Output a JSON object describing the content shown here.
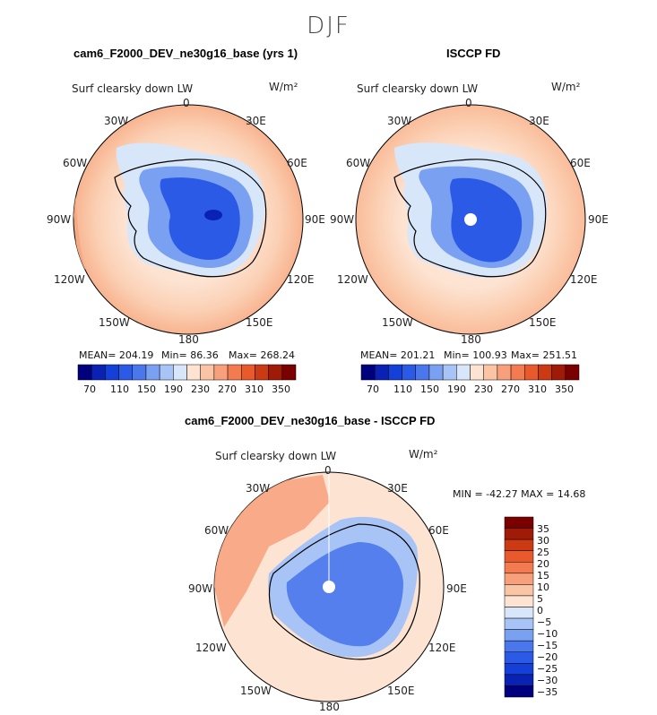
{
  "figure": {
    "season": "DJF"
  },
  "panels": {
    "model": {
      "title": "cam6_F2000_DEV_ne30g16_base (yrs 1)",
      "variable": "Surf clearsky down LW",
      "units": "W/m²",
      "stats": {
        "mean": "MEAN= 204.19",
        "min": "Min=  86.36",
        "max": "Max= 268.24"
      },
      "colorbar_ticks": [
        "70",
        "110",
        "150",
        "190",
        "230",
        "270",
        "310",
        "350"
      ]
    },
    "obs": {
      "title": "ISCCP FD",
      "variable": "Surf clearsky down LW",
      "units": "W/m²",
      "stats": {
        "mean": "MEAN= 201.21",
        "min": "Min= 100.93",
        "max": "Max= 251.51"
      },
      "colorbar_ticks": [
        "70",
        "110",
        "150",
        "190",
        "230",
        "270",
        "310",
        "350"
      ]
    },
    "diff": {
      "title": "cam6_F2000_DEV_ne30g16_base - ISCCP FD",
      "variable": "Surf clearsky down LW",
      "units": "W/m²",
      "minmax": "MIN = -42.27 MAX =   14.68",
      "colorbar_ticks": [
        "35",
        "30",
        "25",
        "20",
        "15",
        "10",
        "5",
        "0",
        "−5",
        "−10",
        "−15",
        "−20",
        "−25",
        "−30",
        "−35"
      ]
    }
  },
  "longitude_labels": {
    "top": "0",
    "tr": "30E",
    "tl": "30W",
    "ur": "60E",
    "ul": "60W",
    "right": "90E",
    "left": "90W",
    "lr": "120E",
    "ll": "120W",
    "br": "150E",
    "bl": "150W",
    "bottom": "180"
  },
  "colors": {
    "abs_scale": [
      "#00007f",
      "#0a22b4",
      "#1440d8",
      "#2a5ae6",
      "#4a78ec",
      "#7aa0f2",
      "#a8c4f6",
      "#d8e6fa",
      "#fde3d2",
      "#fbc4a4",
      "#f8a07c",
      "#f47a50",
      "#e85a2c",
      "#cc3a14",
      "#a01a08",
      "#7a0000"
    ],
    "diff_scale": [
      "#7a0000",
      "#a01a08",
      "#cc3a14",
      "#e85a2c",
      "#f47a50",
      "#f8a07c",
      "#fbc4a4",
      "#fde3d2",
      "#d8e6fa",
      "#a8c4f6",
      "#7aa0f2",
      "#4a78ec",
      "#2a5ae6",
      "#1440d8",
      "#0a22b4",
      "#00007f"
    ]
  }
}
